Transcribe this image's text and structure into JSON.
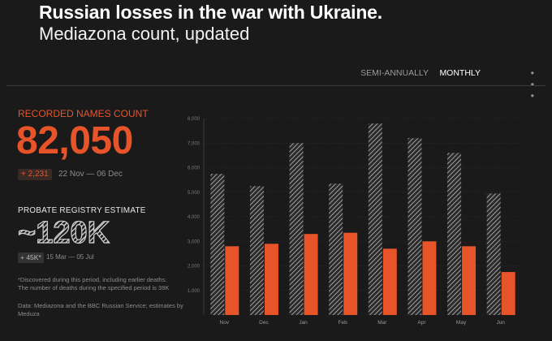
{
  "header": {
    "title": "Russian losses in the war with Ukraine.",
    "subtitle": "Mediazona count, updated"
  },
  "tabs": {
    "items": [
      "SEMI-ANNUALLY",
      "MONTHLY"
    ],
    "active": "MONTHLY",
    "more_label": "• • •"
  },
  "recorded": {
    "label": "RECORDED NAMES COUNT",
    "count": "82,050",
    "delta": "+ 2,231",
    "period": "22 Nov — 06 Dec"
  },
  "probate": {
    "label": "PROBATE REGISTRY ESTIMATE",
    "value": "~120K",
    "delta": "+ 45K*",
    "period": "15 Mar — 05 Jul"
  },
  "note": {
    "line1": "*Discovered during this period, including earlier deaths.",
    "line2": "The number of deaths during the specified period is 39K"
  },
  "source": "Data: Mediazona and the BBC Russian Service; estimates by Meduza",
  "colors": {
    "accent": "#e8542a",
    "background": "#1a1a1a",
    "hatched": "#bdbdbd"
  },
  "chart_data": {
    "type": "bar",
    "categories": [
      "Nov",
      "Dec",
      "Jan",
      "Feb",
      "Mar",
      "Apr",
      "May",
      "Jun"
    ],
    "series": [
      {
        "style": "hatched",
        "values": [
          5750,
          5250,
          7000,
          5350,
          7800,
          7200,
          6600,
          4950
        ]
      },
      {
        "style": "solid",
        "values": [
          2800,
          2900,
          3300,
          3350,
          2700,
          3000,
          2800,
          1750
        ]
      }
    ],
    "yticks": [
      "1,000",
      "2,000",
      "3,000",
      "4,000",
      "5,000",
      "6,000",
      "7,000",
      "8,000"
    ],
    "ylim": [
      0,
      8000
    ],
    "grid": true
  }
}
